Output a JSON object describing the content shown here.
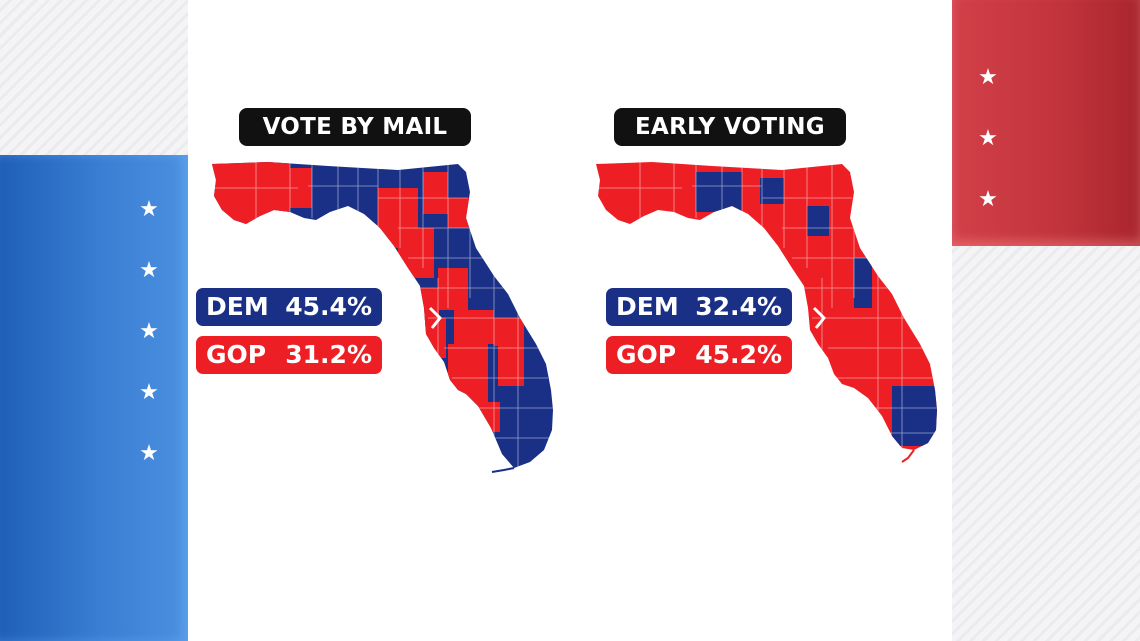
{
  "colors": {
    "dem": "#1a2f86",
    "gop": "#ee1f24",
    "background_blue": "#2f6fc6",
    "background_red": "#c5343c"
  },
  "decor": {
    "star_glyph": "★"
  },
  "panels": [
    {
      "title": "VOTE BY MAIL",
      "dem": {
        "party": "DEM",
        "pct": "45.4%"
      },
      "gop": {
        "party": "GOP",
        "pct": "31.2%"
      },
      "dominant_color": "mixed"
    },
    {
      "title": "EARLY VOTING",
      "dem": {
        "party": "DEM",
        "pct": "32.4%"
      },
      "gop": {
        "party": "GOP",
        "pct": "45.2%"
      },
      "dominant_color": "gop"
    }
  ]
}
